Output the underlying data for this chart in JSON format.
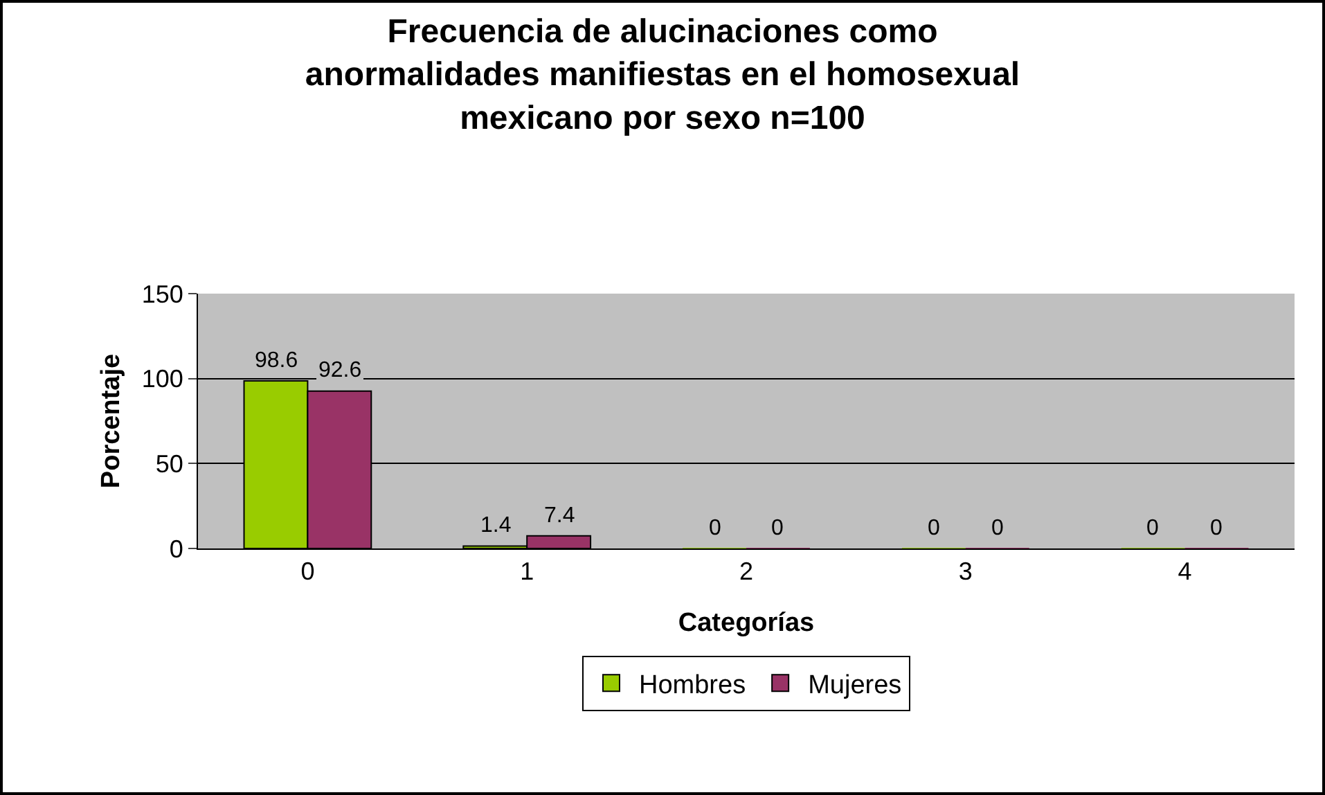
{
  "chart_data": {
    "type": "bar",
    "title": "Frecuencia de alucinaciones como\nanormalidades manifiestas en el homosexual\nmexicano por sexo n=100",
    "xlabel": "Categorías",
    "ylabel": "Porcentaje",
    "categories": [
      "0",
      "1",
      "2",
      "3",
      "4"
    ],
    "series": [
      {
        "name": "Hombres",
        "color": "#99cc00",
        "values": [
          98.6,
          1.4,
          0,
          0,
          0
        ]
      },
      {
        "name": "Mujeres",
        "color": "#993366",
        "values": [
          92.6,
          7.4,
          0,
          0,
          0
        ]
      }
    ],
    "ylim": [
      0,
      150
    ],
    "yticks": [
      0,
      50,
      100,
      150
    ],
    "grid": "y",
    "legend": "bottom",
    "data_labels": true
  }
}
